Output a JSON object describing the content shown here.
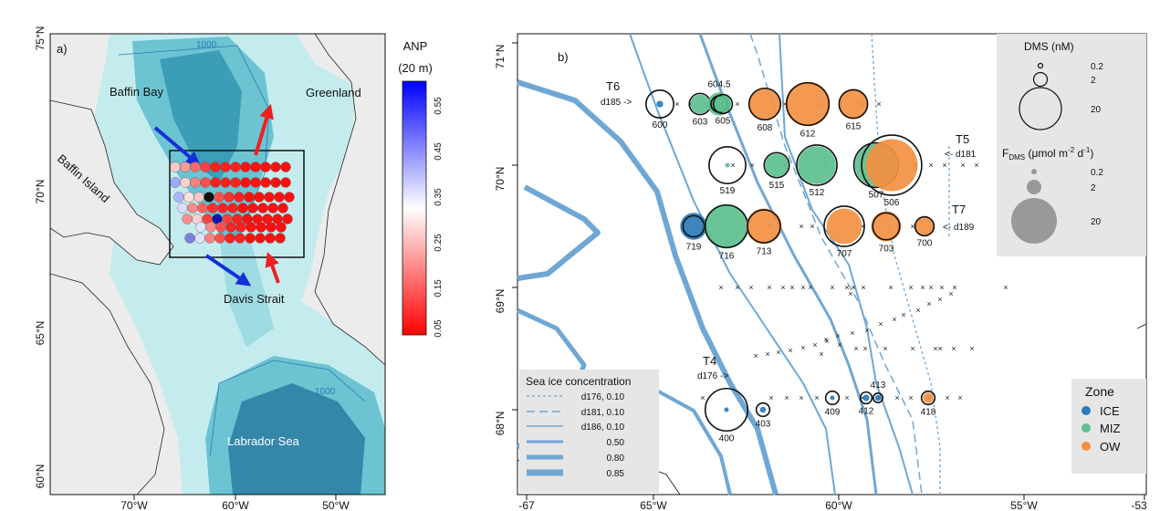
{
  "panel_a": {
    "label": "a)",
    "lat_ticks": [
      "75°N",
      "70°N",
      "65°N",
      "60°N"
    ],
    "lon_ticks": [
      "70°W",
      "60°W",
      "50°W"
    ],
    "places": {
      "baffin_bay": "Baffin Bay",
      "greenland": "Greenland",
      "baffin_island": "Baffin Island",
      "davis_strait": "Davis Strait",
      "labrador_sea": "Labrador Sea"
    },
    "contour_labels": [
      "1000",
      "1000"
    ],
    "colorbar": {
      "title": "ANP",
      "subtitle": "(20 m)",
      "ticks": [
        "0.55",
        "0.45",
        "0.35",
        "0.25",
        "0.15",
        "0.05"
      ],
      "low_color": "#ff0000",
      "mid_color": "#ffffff",
      "high_color": "#0000ff"
    },
    "arrow_colors": {
      "south": "#1530d8",
      "north": "#ee2020"
    }
  },
  "panel_b": {
    "label": "b)",
    "lat_ticks": [
      "71°N",
      "70°N",
      "69°N",
      "68°N"
    ],
    "lon_ticks": [
      "-67",
      "65°W",
      "60°W",
      "55°W",
      "-53"
    ],
    "transects": [
      {
        "name": "T6",
        "day": "d185 ->"
      },
      {
        "name": "T5",
        "day": "<- d181"
      },
      {
        "name": "T7",
        "day": "<- d189"
      },
      {
        "name": "T4",
        "day": "d176 ->"
      }
    ],
    "zone_colors": {
      "ICE": "#2b7bba",
      "MIZ": "#5cc08e",
      "OW": "#f39042"
    },
    "stations": [
      {
        "id": "600",
        "zone": "ICE",
        "dms": 8.5,
        "fdms": 0.5
      },
      {
        "id": "603",
        "zone": "MIZ",
        "dms": 5,
        "fdms": 4
      },
      {
        "id": "604.5",
        "zone": "MIZ",
        "dms": 3,
        "fdms": 6
      },
      {
        "id": "605",
        "zone": "MIZ",
        "dms": 4,
        "fdms": 3
      },
      {
        "id": "608",
        "zone": "OW",
        "dms": 11,
        "fdms": 12
      },
      {
        "id": "612",
        "zone": "OW",
        "dms": 20,
        "fdms": 22
      },
      {
        "id": "615",
        "zone": "OW",
        "dms": 9,
        "fdms": 10
      },
      {
        "id": "519",
        "zone": "MIZ",
        "dms": 15,
        "fdms": 0.2
      },
      {
        "id": "515",
        "zone": "MIZ",
        "dms": 7,
        "fdms": 6
      },
      {
        "id": "512",
        "zone": "MIZ",
        "dms": 18,
        "fdms": 16
      },
      {
        "id": "507",
        "zone": "MIZ",
        "dms": 22,
        "fdms": 20
      },
      {
        "id": "506",
        "zone": "OW",
        "dms": 40,
        "fdms": 30
      },
      {
        "id": "719",
        "zone": "ICE",
        "dms": 5,
        "fdms": 8
      },
      {
        "id": "716",
        "zone": "MIZ",
        "dms": 20,
        "fdms": 22
      },
      {
        "id": "713",
        "zone": "OW",
        "dms": 12,
        "fdms": 14
      },
      {
        "id": "707",
        "zone": "OW",
        "dms": 18,
        "fdms": 14
      },
      {
        "id": "703",
        "zone": "OW",
        "dms": 8,
        "fdms": 10
      },
      {
        "id": "700",
        "zone": "OW",
        "dms": 4,
        "fdms": 4
      },
      {
        "id": "400",
        "zone": "ICE",
        "dms": 20,
        "fdms": 0.1
      },
      {
        "id": "403",
        "zone": "ICE",
        "dms": 2,
        "fdms": 0.4
      },
      {
        "id": "409",
        "zone": "ICE",
        "dms": 2,
        "fdms": 0.05
      },
      {
        "id": "412",
        "zone": "ICE",
        "dms": 1.5,
        "fdms": 0.5
      },
      {
        "id": "413",
        "zone": "ICE",
        "dms": 1,
        "fdms": 0.4
      },
      {
        "id": "418",
        "zone": "OW",
        "dms": 2,
        "fdms": 1.2
      }
    ],
    "ice_legend": {
      "title": "Sea ice concentration",
      "entries": [
        "d176, 0.10",
        "d181, 0.10",
        "d186, 0.10",
        "0.50",
        "0.80",
        "0.85"
      ]
    },
    "dms_legend": {
      "title": "DMS (nM)",
      "values": [
        "0.2",
        "2",
        "20"
      ],
      "fdms_title_main": "F",
      "fdms_title_sub": "DMS",
      "fdms_title_rest": " (μmol m",
      "fdms_sup1": "-2",
      "fdms_mid": " d",
      "fdms_sup2": "-1",
      "fdms_end": ")",
      "fdms_values": [
        "0.2",
        "2",
        "20"
      ]
    },
    "zone_legend": {
      "title": "Zone",
      "items": [
        "ICE",
        "MIZ",
        "OW"
      ]
    }
  }
}
